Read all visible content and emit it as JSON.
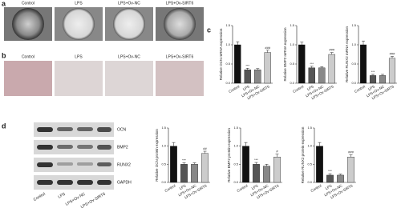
{
  "panel_labels": [
    "a",
    "b",
    "c",
    "d"
  ],
  "panel_a": {
    "groups": [
      "Control",
      "LPS",
      "LPS+Ov-NC",
      "LPS+Ov-SIRT6"
    ]
  },
  "panel_b": {
    "groups": [
      "Control",
      "LPS",
      "LPS+Ov-NC",
      "LPS+Ov-SIRT6"
    ]
  },
  "blot": {
    "proteins": [
      "OCN",
      "BMP2",
      "RUNX2",
      "GAPDH"
    ],
    "groups": [
      "Control",
      "LPS",
      "LPS+Ov-NC",
      "LPS+Ov-SIRT6"
    ]
  },
  "chart_data": [
    {
      "type": "bar",
      "y_label": "Relative OCN mRNA expression",
      "categories": [
        "Control",
        "LPS",
        "LPS+Ov-NC",
        "LPS+Ov-SIRT6"
      ],
      "values": [
        1.0,
        0.35,
        0.35,
        0.8
      ],
      "errors": [
        0.08,
        0.04,
        0.03,
        0.06
      ],
      "annotations": [
        null,
        "***",
        null,
        "###"
      ],
      "colors": [
        "#111111",
        "#555555",
        "#888888",
        "#cccccc"
      ],
      "ylim": [
        0,
        1.5
      ],
      "yticks": [
        {
          "value": 0,
          "label": "0.0"
        },
        {
          "value": 0.5,
          "label": "0.5"
        },
        {
          "value": 1,
          "label": "1.0"
        },
        {
          "value": 1.5,
          "label": "1.5"
        }
      ]
    },
    {
      "type": "bar",
      "y_label": "Relative BMP2 mRNA expression",
      "categories": [
        "Control",
        "LPS",
        "LPS+Ov-NC",
        "LPS+Ov-SIRT6"
      ],
      "values": [
        1.0,
        0.4,
        0.4,
        0.75
      ],
      "errors": [
        0.07,
        0.04,
        0.03,
        0.05
      ],
      "annotations": [
        null,
        "***",
        null,
        "###"
      ],
      "colors": [
        "#111111",
        "#555555",
        "#888888",
        "#cccccc"
      ],
      "ylim": [
        0,
        1.5
      ],
      "yticks": [
        {
          "value": 0,
          "label": "0.0"
        },
        {
          "value": 0.5,
          "label": "0.5"
        },
        {
          "value": 1,
          "label": "1.0"
        },
        {
          "value": 1.5,
          "label": "1.5"
        }
      ]
    },
    {
      "type": "bar",
      "y_label": "Relative RUNX2 mRNA expression",
      "categories": [
        "Control",
        "LPS",
        "LPS+Ov-NC",
        "LPS+Ov-SIRT6"
      ],
      "values": [
        1.0,
        0.2,
        0.2,
        0.65
      ],
      "errors": [
        0.1,
        0.03,
        0.03,
        0.05
      ],
      "annotations": [
        null,
        "***",
        null,
        "###"
      ],
      "colors": [
        "#111111",
        "#555555",
        "#888888",
        "#cccccc"
      ],
      "ylim": [
        0,
        1.5
      ],
      "yticks": [
        {
          "value": 0,
          "label": "0.0"
        },
        {
          "value": 0.5,
          "label": "0.5"
        },
        {
          "value": 1,
          "label": "1.0"
        },
        {
          "value": 1.5,
          "label": "1.5"
        }
      ]
    },
    {
      "type": "bar",
      "y_label": "Relative OCN protein expression",
      "categories": [
        "Control",
        "LPS",
        "LPS+Ov-NC",
        "LPS+Ov-SIRT6"
      ],
      "values": [
        1.0,
        0.5,
        0.5,
        0.8
      ],
      "errors": [
        0.1,
        0.04,
        0.04,
        0.06
      ],
      "annotations": [
        null,
        "***",
        null,
        "##"
      ],
      "colors": [
        "#111111",
        "#555555",
        "#888888",
        "#cccccc"
      ],
      "ylim": [
        0,
        1.5
      ],
      "yticks": [
        {
          "value": 0,
          "label": "0.0"
        },
        {
          "value": 0.5,
          "label": "0.5"
        },
        {
          "value": 1,
          "label": "1.0"
        },
        {
          "value": 1.5,
          "label": "1.5"
        }
      ]
    },
    {
      "type": "bar",
      "y_label": "Relative BMP2 protein expression",
      "categories": [
        "Control",
        "LPS",
        "LPS+Ov-NC",
        "LPS+Ov-SIRT6"
      ],
      "values": [
        1.0,
        0.5,
        0.45,
        0.7
      ],
      "errors": [
        0.1,
        0.05,
        0.05,
        0.08
      ],
      "annotations": [
        null,
        "***",
        null,
        "#"
      ],
      "colors": [
        "#111111",
        "#555555",
        "#888888",
        "#cccccc"
      ],
      "ylim": [
        0,
        1.5
      ],
      "yticks": [
        {
          "value": 0,
          "label": "0.0"
        },
        {
          "value": 0.5,
          "label": "0.5"
        },
        {
          "value": 1,
          "label": "1.0"
        },
        {
          "value": 1.5,
          "label": "1.5"
        }
      ]
    },
    {
      "type": "bar",
      "y_label": "Relative RUNX2 protein expression",
      "categories": [
        "Control",
        "LPS",
        "LPS+Ov-NC",
        "LPS+Ov-SIRT6"
      ],
      "values": [
        1.0,
        0.2,
        0.2,
        0.7
      ],
      "errors": [
        0.1,
        0.04,
        0.03,
        0.06
      ],
      "annotations": [
        null,
        "***",
        null,
        "###"
      ],
      "colors": [
        "#111111",
        "#555555",
        "#888888",
        "#cccccc"
      ],
      "ylim": [
        0,
        1.5
      ],
      "yticks": [
        {
          "value": 0,
          "label": "0.0"
        },
        {
          "value": 0.5,
          "label": "0.5"
        },
        {
          "value": 1,
          "label": "1.0"
        },
        {
          "value": 1.5,
          "label": "1.5"
        }
      ]
    }
  ]
}
